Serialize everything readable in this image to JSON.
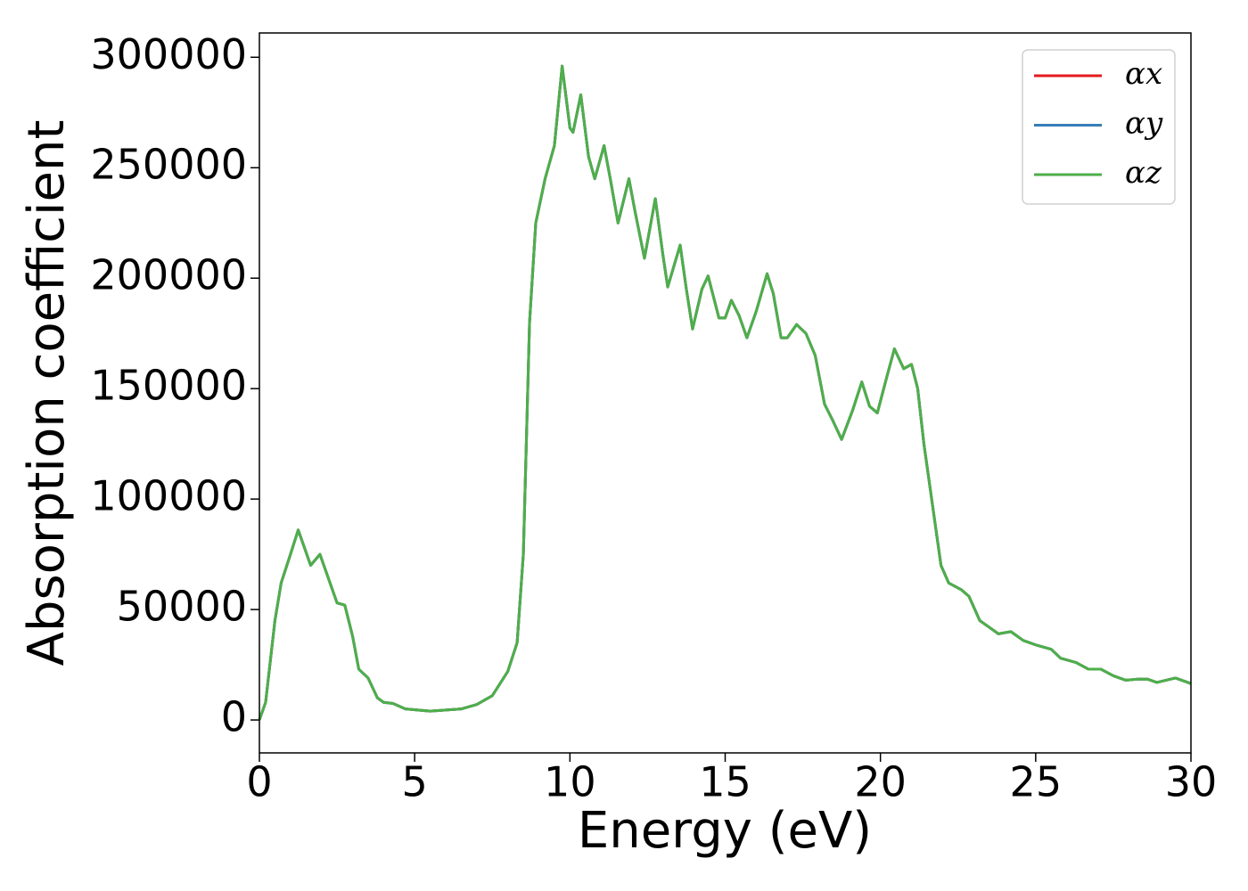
{
  "chart_data": {
    "type": "line",
    "xlabel": "Energy (eV)",
    "ylabel": "Absorption coefficient",
    "x": [
      0,
      0.2,
      0.5,
      0.7,
      1.0,
      1.25,
      1.45,
      1.65,
      1.95,
      2.2,
      2.5,
      2.75,
      3.0,
      3.2,
      3.5,
      3.8,
      4.0,
      4.3,
      4.7,
      5.5,
      6.5,
      7.0,
      7.5,
      8.0,
      8.3,
      8.5,
      8.7,
      8.9,
      9.2,
      9.5,
      9.75,
      10.0,
      10.1,
      10.35,
      10.6,
      10.8,
      11.1,
      11.3,
      11.55,
      11.9,
      12.1,
      12.4,
      12.75,
      13.0,
      13.15,
      13.55,
      13.75,
      13.95,
      14.25,
      14.45,
      14.8,
      15.0,
      15.2,
      15.45,
      15.7,
      16.0,
      16.35,
      16.55,
      16.8,
      17.0,
      17.3,
      17.6,
      17.9,
      18.2,
      18.45,
      18.75,
      19.1,
      19.4,
      19.65,
      19.9,
      20.2,
      20.45,
      20.75,
      21.0,
      21.2,
      21.4,
      21.7,
      21.95,
      22.2,
      22.6,
      22.85,
      23.2,
      23.5,
      23.8,
      24.2,
      24.6,
      25.0,
      25.5,
      25.8,
      26.3,
      26.7,
      27.1,
      27.5,
      27.9,
      28.3,
      28.6,
      28.9,
      29.2,
      29.5,
      29.8,
      30.0
    ],
    "series": [
      {
        "name": "αx",
        "color": "#e41a1c",
        "values": [
          0,
          8000,
          45000,
          62000,
          75000,
          86000,
          78000,
          70000,
          75000,
          65000,
          53000,
          52000,
          38000,
          23000,
          19000,
          10000,
          8000,
          7500,
          5000,
          4000,
          5000,
          7000,
          11000,
          22000,
          35000,
          75000,
          180000,
          225000,
          245000,
          260000,
          296000,
          268000,
          266000,
          283000,
          255000,
          245000,
          260000,
          245000,
          225000,
          245000,
          230000,
          209000,
          236000,
          210000,
          196000,
          215000,
          195000,
          177000,
          195000,
          201000,
          182000,
          182000,
          190000,
          183000,
          173000,
          185000,
          202000,
          193000,
          173000,
          173000,
          179000,
          175000,
          165000,
          143000,
          136000,
          127000,
          140000,
          153000,
          142000,
          139000,
          155000,
          168000,
          159000,
          161000,
          150000,
          125000,
          95000,
          70000,
          62000,
          59000,
          56000,
          45000,
          42000,
          39000,
          40000,
          36000,
          34000,
          32000,
          28000,
          26000,
          23000,
          23000,
          20000,
          18000,
          18500,
          18500,
          17000,
          18000,
          19000,
          17500,
          16500
        ]
      },
      {
        "name": "αy",
        "color": "#377eb8",
        "values": [
          0,
          8000,
          45000,
          62000,
          75000,
          86000,
          78000,
          70000,
          75000,
          65000,
          53000,
          52000,
          38000,
          23000,
          19000,
          10000,
          8000,
          7500,
          5000,
          4000,
          5000,
          7000,
          11000,
          22000,
          35000,
          75000,
          180000,
          225000,
          245000,
          260000,
          296000,
          268000,
          266000,
          283000,
          255000,
          245000,
          260000,
          245000,
          225000,
          245000,
          230000,
          209000,
          236000,
          210000,
          196000,
          215000,
          195000,
          177000,
          195000,
          201000,
          182000,
          182000,
          190000,
          183000,
          173000,
          185000,
          202000,
          193000,
          173000,
          173000,
          179000,
          175000,
          165000,
          143000,
          136000,
          127000,
          140000,
          153000,
          142000,
          139000,
          155000,
          168000,
          159000,
          161000,
          150000,
          125000,
          95000,
          70000,
          62000,
          59000,
          56000,
          45000,
          42000,
          39000,
          40000,
          36000,
          34000,
          32000,
          28000,
          26000,
          23000,
          23000,
          20000,
          18000,
          18500,
          18500,
          17000,
          18000,
          19000,
          17500,
          16500
        ]
      },
      {
        "name": "αz",
        "color": "#4daf4a",
        "values": [
          0,
          8000,
          45000,
          62000,
          75000,
          86000,
          78000,
          70000,
          75000,
          65000,
          53000,
          52000,
          38000,
          23000,
          19000,
          10000,
          8000,
          7500,
          5000,
          4000,
          5000,
          7000,
          11000,
          22000,
          35000,
          75000,
          180000,
          225000,
          245000,
          260000,
          296000,
          268000,
          266000,
          283000,
          255000,
          245000,
          260000,
          245000,
          225000,
          245000,
          230000,
          209000,
          236000,
          210000,
          196000,
          215000,
          195000,
          177000,
          195000,
          201000,
          182000,
          182000,
          190000,
          183000,
          173000,
          185000,
          202000,
          193000,
          173000,
          173000,
          179000,
          175000,
          165000,
          143000,
          136000,
          127000,
          140000,
          153000,
          142000,
          139000,
          155000,
          168000,
          159000,
          161000,
          150000,
          125000,
          95000,
          70000,
          62000,
          59000,
          56000,
          45000,
          42000,
          39000,
          40000,
          36000,
          34000,
          32000,
          28000,
          26000,
          23000,
          23000,
          20000,
          18000,
          18500,
          18500,
          17000,
          18000,
          19000,
          17500,
          16500
        ]
      }
    ],
    "xlim": [
      0,
      30
    ],
    "xticks": [
      0,
      5,
      10,
      15,
      20,
      25,
      30
    ],
    "ylim": [
      -14900,
      311000
    ],
    "yticks": [
      0,
      50000,
      100000,
      150000,
      200000,
      250000,
      300000
    ],
    "legend": "upper right"
  }
}
